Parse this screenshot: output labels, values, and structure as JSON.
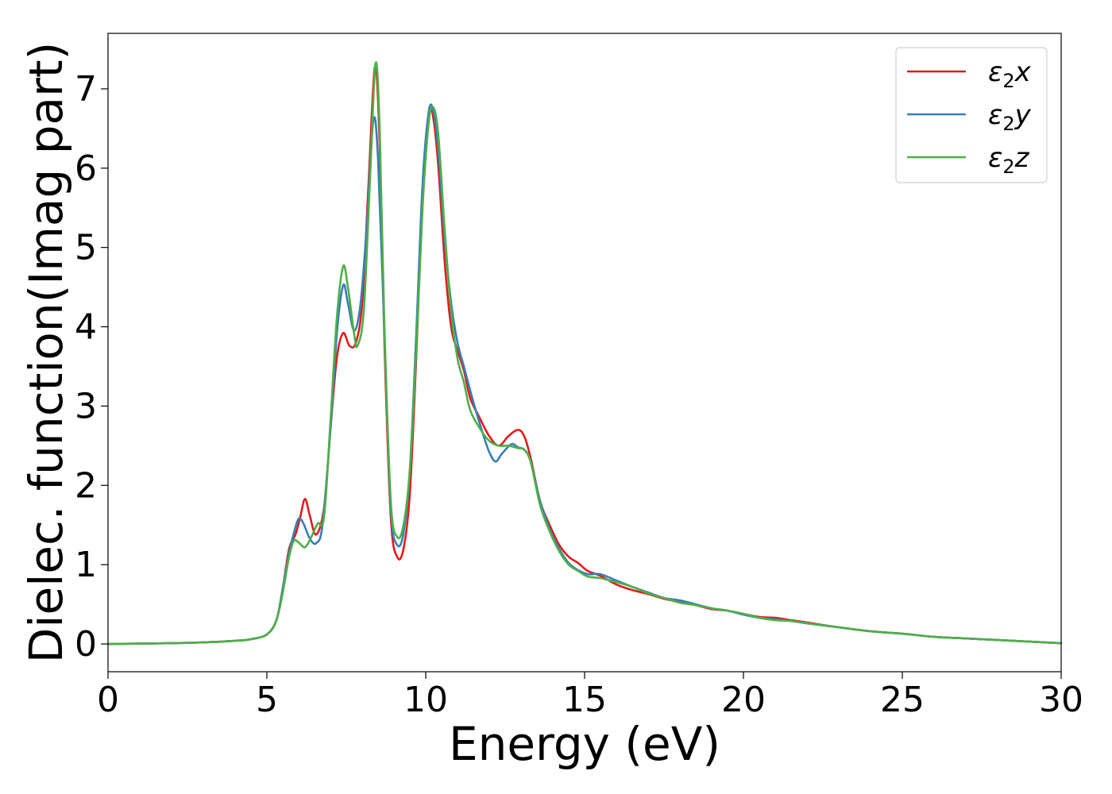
{
  "chart_data": {
    "type": "line",
    "title": "",
    "xlabel": "Energy (eV)",
    "ylabel": "Dielec. function(Imag part)",
    "xlim": [
      0,
      30
    ],
    "ylim": [
      -0.35,
      7.7
    ],
    "xticks": [
      0,
      5,
      10,
      15,
      20,
      25,
      30
    ],
    "yticks": [
      0,
      1,
      2,
      3,
      4,
      5,
      6,
      7
    ],
    "grid": false,
    "legend_position": "top-right",
    "series": [
      {
        "name": "ε2x",
        "legend_base": "ε",
        "legend_sub": "2",
        "legend_suffix": "x",
        "color": "#e41a1c",
        "points": [
          [
            0,
            0
          ],
          [
            2,
            0.01
          ],
          [
            3,
            0.02
          ],
          [
            4,
            0.04
          ],
          [
            4.5,
            0.06
          ],
          [
            5,
            0.12
          ],
          [
            5.3,
            0.3
          ],
          [
            5.5,
            0.7
          ],
          [
            5.7,
            1.2
          ],
          [
            5.9,
            1.38
          ],
          [
            6.05,
            1.6
          ],
          [
            6.2,
            1.83
          ],
          [
            6.35,
            1.62
          ],
          [
            6.55,
            1.38
          ],
          [
            6.8,
            1.72
          ],
          [
            7.0,
            2.7
          ],
          [
            7.2,
            3.6
          ],
          [
            7.4,
            3.92
          ],
          [
            7.6,
            3.76
          ],
          [
            7.8,
            3.8
          ],
          [
            8.0,
            4.3
          ],
          [
            8.2,
            5.8
          ],
          [
            8.4,
            7.28
          ],
          [
            8.55,
            6.3
          ],
          [
            8.7,
            3.8
          ],
          [
            8.9,
            1.6
          ],
          [
            9.1,
            1.1
          ],
          [
            9.3,
            1.2
          ],
          [
            9.5,
            1.9
          ],
          [
            9.7,
            3.6
          ],
          [
            9.9,
            5.6
          ],
          [
            10.1,
            6.72
          ],
          [
            10.25,
            6.6
          ],
          [
            10.4,
            6.0
          ],
          [
            10.6,
            4.8
          ],
          [
            10.8,
            4.0
          ],
          [
            11.0,
            3.7
          ],
          [
            11.2,
            3.45
          ],
          [
            11.4,
            3.1
          ],
          [
            11.7,
            2.85
          ],
          [
            12.0,
            2.62
          ],
          [
            12.3,
            2.5
          ],
          [
            12.6,
            2.62
          ],
          [
            12.9,
            2.7
          ],
          [
            13.1,
            2.62
          ],
          [
            13.3,
            2.35
          ],
          [
            13.6,
            1.8
          ],
          [
            13.9,
            1.5
          ],
          [
            14.2,
            1.25
          ],
          [
            14.5,
            1.1
          ],
          [
            14.8,
            1.02
          ],
          [
            15.1,
            0.92
          ],
          [
            15.5,
            0.86
          ],
          [
            16.0,
            0.75
          ],
          [
            16.5,
            0.68
          ],
          [
            17.0,
            0.63
          ],
          [
            17.5,
            0.57
          ],
          [
            18.0,
            0.53
          ],
          [
            18.5,
            0.49
          ],
          [
            19.0,
            0.44
          ],
          [
            19.5,
            0.42
          ],
          [
            20.0,
            0.38
          ],
          [
            20.5,
            0.34
          ],
          [
            21.0,
            0.33
          ],
          [
            21.5,
            0.3
          ],
          [
            22.0,
            0.27
          ],
          [
            23.0,
            0.21
          ],
          [
            24.0,
            0.16
          ],
          [
            25.0,
            0.13
          ],
          [
            26.0,
            0.09
          ],
          [
            27.0,
            0.07
          ],
          [
            28.0,
            0.05
          ],
          [
            29.0,
            0.03
          ],
          [
            30.0,
            0.01
          ]
        ]
      },
      {
        "name": "ε2y",
        "legend_base": "ε",
        "legend_sub": "2",
        "legend_suffix": "y",
        "color": "#377eb8",
        "points": [
          [
            0,
            0
          ],
          [
            2,
            0.01
          ],
          [
            3,
            0.02
          ],
          [
            4,
            0.04
          ],
          [
            4.5,
            0.06
          ],
          [
            5,
            0.12
          ],
          [
            5.3,
            0.3
          ],
          [
            5.5,
            0.7
          ],
          [
            5.7,
            1.15
          ],
          [
            5.85,
            1.4
          ],
          [
            6.0,
            1.58
          ],
          [
            6.15,
            1.52
          ],
          [
            6.35,
            1.33
          ],
          [
            6.55,
            1.27
          ],
          [
            6.75,
            1.5
          ],
          [
            7.0,
            2.7
          ],
          [
            7.2,
            3.9
          ],
          [
            7.4,
            4.52
          ],
          [
            7.55,
            4.3
          ],
          [
            7.75,
            3.95
          ],
          [
            7.95,
            4.3
          ],
          [
            8.15,
            5.3
          ],
          [
            8.35,
            6.6
          ],
          [
            8.5,
            6.1
          ],
          [
            8.7,
            3.9
          ],
          [
            8.9,
            1.7
          ],
          [
            9.1,
            1.25
          ],
          [
            9.3,
            1.4
          ],
          [
            9.5,
            2.2
          ],
          [
            9.7,
            3.9
          ],
          [
            9.9,
            5.8
          ],
          [
            10.1,
            6.72
          ],
          [
            10.25,
            6.7
          ],
          [
            10.4,
            6.2
          ],
          [
            10.6,
            5.1
          ],
          [
            10.8,
            4.3
          ],
          [
            11.0,
            3.8
          ],
          [
            11.2,
            3.5
          ],
          [
            11.5,
            3.05
          ],
          [
            11.8,
            2.65
          ],
          [
            12.0,
            2.42
          ],
          [
            12.2,
            2.3
          ],
          [
            12.4,
            2.4
          ],
          [
            12.7,
            2.52
          ],
          [
            12.9,
            2.48
          ],
          [
            13.1,
            2.45
          ],
          [
            13.3,
            2.3
          ],
          [
            13.6,
            1.8
          ],
          [
            13.9,
            1.45
          ],
          [
            14.2,
            1.2
          ],
          [
            14.5,
            1.02
          ],
          [
            14.8,
            0.93
          ],
          [
            15.1,
            0.88
          ],
          [
            15.5,
            0.88
          ],
          [
            16.0,
            0.8
          ],
          [
            16.5,
            0.72
          ],
          [
            17.0,
            0.65
          ],
          [
            17.5,
            0.58
          ],
          [
            18.0,
            0.55
          ],
          [
            18.5,
            0.5
          ],
          [
            19.0,
            0.45
          ],
          [
            19.5,
            0.42
          ],
          [
            20.0,
            0.37
          ],
          [
            20.5,
            0.33
          ],
          [
            21.0,
            0.31
          ],
          [
            21.5,
            0.29
          ],
          [
            22.0,
            0.26
          ],
          [
            23.0,
            0.21
          ],
          [
            24.0,
            0.16
          ],
          [
            25.0,
            0.13
          ],
          [
            26.0,
            0.09
          ],
          [
            27.0,
            0.07
          ],
          [
            28.0,
            0.05
          ],
          [
            29.0,
            0.03
          ],
          [
            30.0,
            0.01
          ]
        ]
      },
      {
        "name": "ε2z",
        "legend_base": "ε",
        "legend_sub": "2",
        "legend_suffix": "z",
        "color": "#4daf4a",
        "points": [
          [
            0,
            0
          ],
          [
            2,
            0.01
          ],
          [
            3,
            0.02
          ],
          [
            4,
            0.04
          ],
          [
            4.5,
            0.06
          ],
          [
            5,
            0.12
          ],
          [
            5.3,
            0.3
          ],
          [
            5.5,
            0.65
          ],
          [
            5.7,
            1.1
          ],
          [
            5.85,
            1.3
          ],
          [
            6.0,
            1.28
          ],
          [
            6.2,
            1.22
          ],
          [
            6.4,
            1.35
          ],
          [
            6.6,
            1.52
          ],
          [
            6.8,
            1.6
          ],
          [
            7.0,
            2.8
          ],
          [
            7.2,
            4.1
          ],
          [
            7.4,
            4.76
          ],
          [
            7.55,
            4.5
          ],
          [
            7.75,
            3.9
          ],
          [
            7.85,
            3.76
          ],
          [
            8.05,
            4.2
          ],
          [
            8.25,
            5.9
          ],
          [
            8.42,
            7.32
          ],
          [
            8.55,
            6.5
          ],
          [
            8.7,
            4.0
          ],
          [
            8.9,
            1.8
          ],
          [
            9.1,
            1.35
          ],
          [
            9.3,
            1.5
          ],
          [
            9.5,
            2.2
          ],
          [
            9.7,
            3.7
          ],
          [
            9.9,
            5.5
          ],
          [
            10.1,
            6.6
          ],
          [
            10.25,
            6.76
          ],
          [
            10.4,
            6.4
          ],
          [
            10.6,
            5.2
          ],
          [
            10.8,
            4.2
          ],
          [
            11.0,
            3.6
          ],
          [
            11.2,
            3.3
          ],
          [
            11.4,
            2.95
          ],
          [
            11.7,
            2.72
          ],
          [
            12.0,
            2.56
          ],
          [
            12.3,
            2.5
          ],
          [
            12.6,
            2.5
          ],
          [
            12.9,
            2.47
          ],
          [
            13.1,
            2.45
          ],
          [
            13.3,
            2.3
          ],
          [
            13.6,
            1.75
          ],
          [
            13.9,
            1.42
          ],
          [
            14.2,
            1.17
          ],
          [
            14.5,
            1.0
          ],
          [
            14.8,
            0.92
          ],
          [
            15.1,
            0.85
          ],
          [
            15.5,
            0.83
          ],
          [
            16.0,
            0.78
          ],
          [
            16.5,
            0.72
          ],
          [
            17.0,
            0.64
          ],
          [
            17.5,
            0.58
          ],
          [
            18.0,
            0.52
          ],
          [
            18.5,
            0.49
          ],
          [
            19.0,
            0.45
          ],
          [
            19.5,
            0.42
          ],
          [
            20.0,
            0.38
          ],
          [
            20.5,
            0.33
          ],
          [
            21.0,
            0.3
          ],
          [
            21.5,
            0.29
          ],
          [
            22.0,
            0.26
          ],
          [
            23.0,
            0.21
          ],
          [
            24.0,
            0.16
          ],
          [
            25.0,
            0.13
          ],
          [
            26.0,
            0.09
          ],
          [
            27.0,
            0.07
          ],
          [
            28.0,
            0.05
          ],
          [
            29.0,
            0.03
          ],
          [
            30.0,
            0.01
          ]
        ]
      }
    ]
  }
}
